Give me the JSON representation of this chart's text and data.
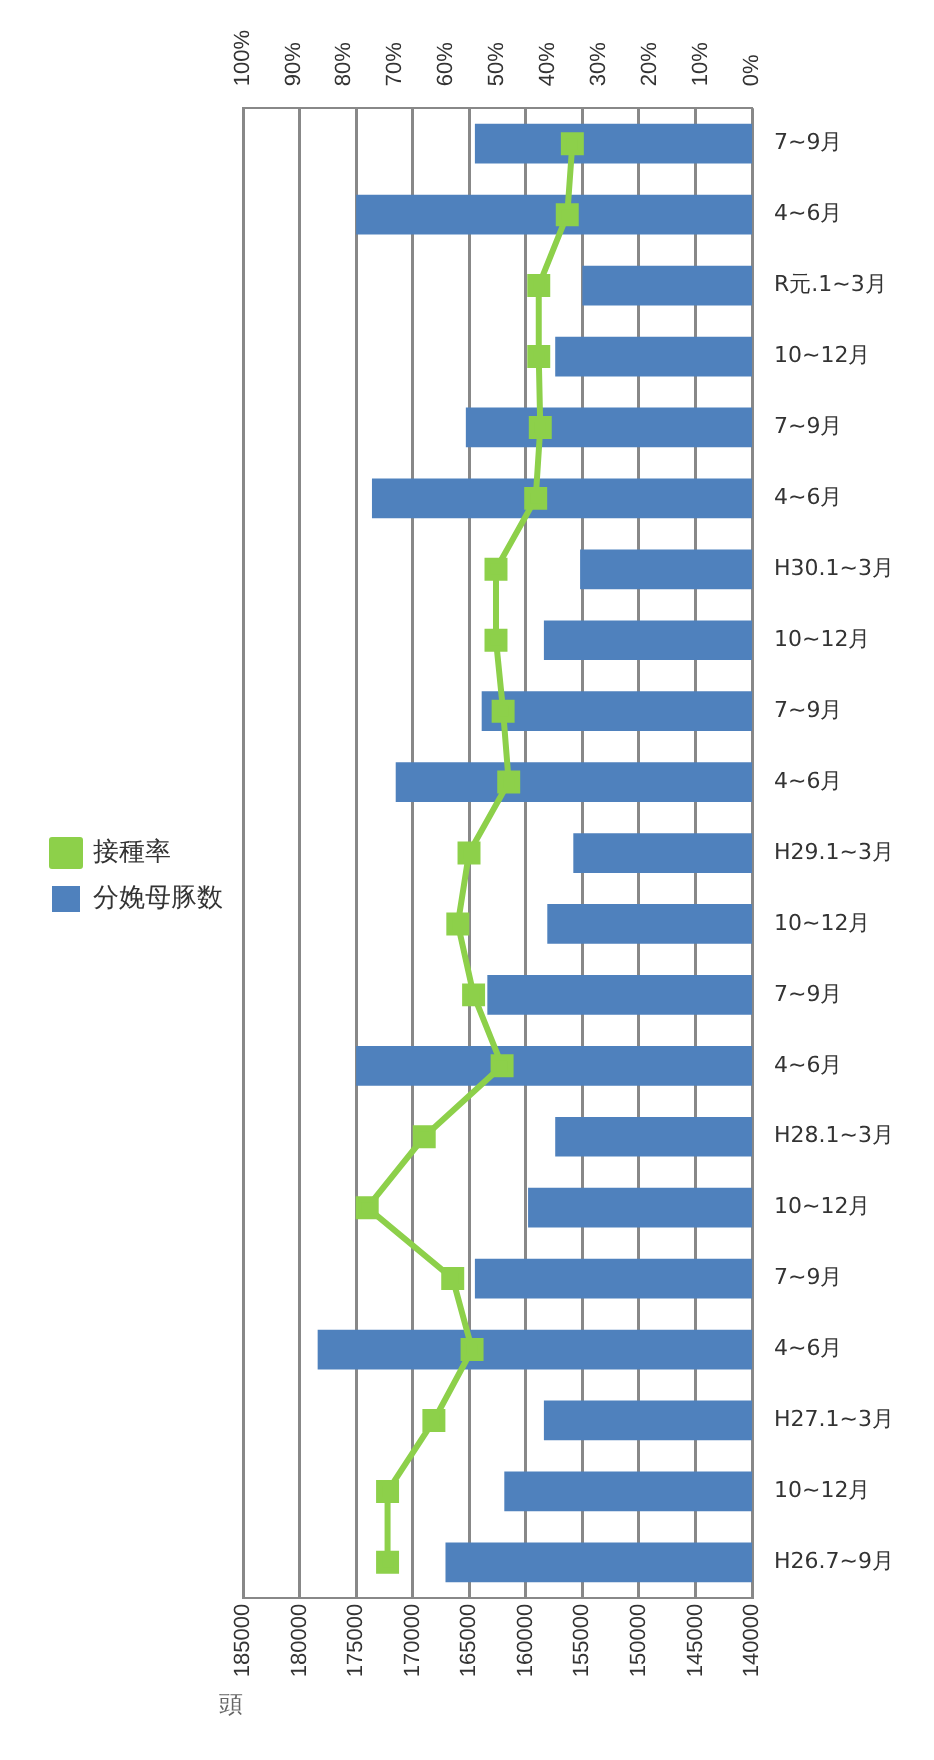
{
  "chart_data": {
    "type": "bar",
    "orientation": "horizontal",
    "xlabel": "頭",
    "categories": [
      "7~9月",
      "4~6月",
      "R元.1~3月",
      "10~12月",
      "7~9月",
      "4~6月",
      "H30.1~3月",
      "10~12月",
      "7~9月",
      "4~6月",
      "H29.1~3月",
      "10~12月",
      "7~9月",
      "4~6月",
      "H28.1~3月",
      "10~12月",
      "7~9月",
      "4~6月",
      "H27.1~3月",
      "10~12月",
      "H26.7~9月"
    ],
    "series": [
      {
        "name": "分娩母豚数",
        "color": "#4f81bd",
        "values": [
          164500,
          175000,
          155000,
          157400,
          165300,
          173600,
          155200,
          158400,
          163900,
          171500,
          155800,
          158100,
          163400,
          175000,
          157400,
          159800,
          164500,
          178400,
          158400,
          161900,
          167100
        ]
      },
      {
        "name": "接種率",
        "type": "line",
        "axis": "x2",
        "color": "#8dd04a",
        "values": [
          35.3,
          36.3,
          41.9,
          41.9,
          41.6,
          42.5,
          50.3,
          50.3,
          48.9,
          47.8,
          55.6,
          57.8,
          54.7,
          49.1,
          64.4,
          75.6,
          58.8,
          55,
          62.5,
          71.6,
          71.6
        ]
      }
    ],
    "xlim": [
      185000,
      140000
    ],
    "xticks": [
      185000,
      180000,
      175000,
      170000,
      165000,
      160000,
      155000,
      150000,
      145000,
      140000
    ],
    "x2lim": [
      100,
      0
    ],
    "x2ticks": [
      {
        "value": 100,
        "label": "100%"
      },
      {
        "value": 90,
        "label": "90%"
      },
      {
        "value": 80,
        "label": "80%"
      },
      {
        "value": 70,
        "label": "70%"
      },
      {
        "value": 60,
        "label": "60%"
      },
      {
        "value": 50,
        "label": "50%"
      },
      {
        "value": 40,
        "label": "40%"
      },
      {
        "value": 30,
        "label": "30%"
      },
      {
        "value": 20,
        "label": "20%"
      },
      {
        "value": 10,
        "label": "10%"
      },
      {
        "value": 0,
        "label": "0%"
      }
    ],
    "grid": "x",
    "legend": "left",
    "marker": "square"
  }
}
